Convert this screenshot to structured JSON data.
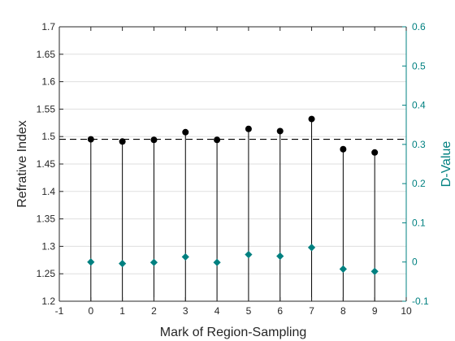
{
  "chart_data": {
    "type": "scatter",
    "xlabel": "Mark of Region-Sampling",
    "ylabel_left": "Refrative Index",
    "ylabel_right": "D-Value",
    "xlim": [
      -1,
      10
    ],
    "ylim_left": [
      1.2,
      1.7
    ],
    "ylim_right": [
      -0.1,
      0.6
    ],
    "x_ticks": [
      "-1",
      "0",
      "1",
      "2",
      "3",
      "4",
      "5",
      "6",
      "7",
      "8",
      "9",
      "10"
    ],
    "y_ticks_left": [
      "1.2",
      "1.25",
      "1.3",
      "1.35",
      "1.4",
      "1.45",
      "1.5",
      "1.55",
      "1.6",
      "1.65",
      "1.7"
    ],
    "y_ticks_right": [
      "-0.1",
      "0",
      "0.1",
      "0.2",
      "0.3",
      "0.4",
      "0.5",
      "0.6"
    ],
    "reference_line": {
      "axis": "left",
      "y": 1.495,
      "style": "dashed"
    },
    "grid": "horizontal",
    "series": [
      {
        "axis": "left",
        "marker": "circle",
        "stem": true,
        "color": "#000000",
        "x": [
          0,
          1,
          2,
          3,
          4,
          5,
          6,
          7,
          8,
          9
        ],
        "values": [
          1.495,
          1.491,
          1.494,
          1.508,
          1.494,
          1.514,
          1.51,
          1.532,
          1.477,
          1.471
        ]
      },
      {
        "axis": "right",
        "marker": "diamond",
        "stem": false,
        "color": "#008080",
        "x": [
          0,
          1,
          2,
          3,
          4,
          5,
          6,
          7,
          8,
          9
        ],
        "values": [
          0.0,
          -0.004,
          -0.001,
          0.013,
          -0.001,
          0.019,
          0.015,
          0.037,
          -0.018,
          -0.024
        ]
      }
    ]
  }
}
